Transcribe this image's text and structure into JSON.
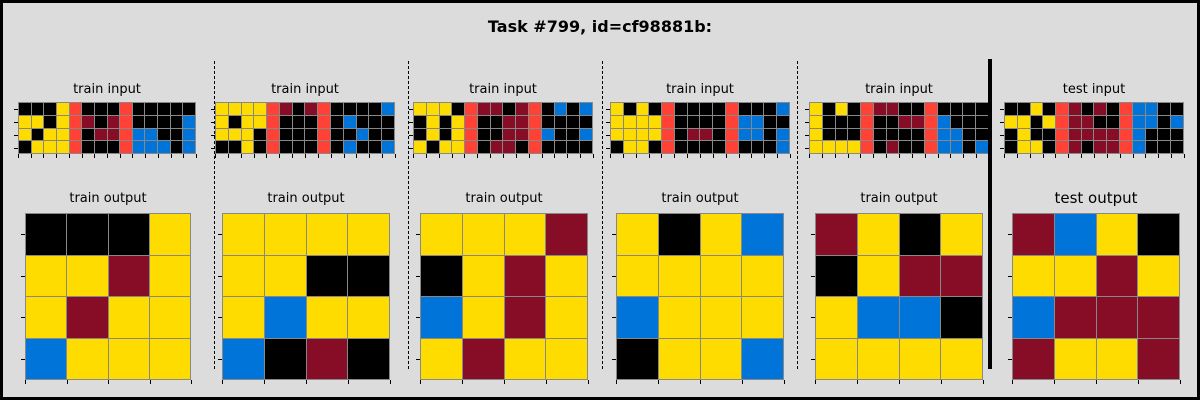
{
  "title": "Task #799, id=cf98881b:",
  "colors": {
    "0": "#000000",
    "1": "#0074d9",
    "2": "#ff4136",
    "4": "#ffdc00",
    "9": "#870c25"
  },
  "pairs": [
    {
      "input_label": "train input",
      "output_label": "train output",
      "input": [
        [
          0,
          0,
          0,
          4,
          2,
          0,
          0,
          0,
          2,
          0,
          0,
          0,
          0,
          0
        ],
        [
          4,
          4,
          0,
          4,
          2,
          9,
          0,
          9,
          2,
          0,
          0,
          0,
          0,
          1
        ],
        [
          4,
          0,
          4,
          4,
          2,
          0,
          9,
          9,
          2,
          1,
          1,
          0,
          0,
          1
        ],
        [
          0,
          4,
          4,
          4,
          2,
          0,
          0,
          0,
          2,
          1,
          1,
          1,
          0,
          1
        ]
      ],
      "output": [
        [
          0,
          0,
          0,
          4
        ],
        [
          4,
          4,
          9,
          4
        ],
        [
          4,
          9,
          4,
          4
        ],
        [
          1,
          4,
          4,
          4
        ]
      ]
    },
    {
      "input_label": "train input",
      "output_label": "train output",
      "input": [
        [
          4,
          4,
          4,
          4,
          2,
          9,
          0,
          9,
          2,
          0,
          0,
          0,
          0,
          1
        ],
        [
          4,
          0,
          4,
          4,
          2,
          0,
          0,
          0,
          2,
          0,
          1,
          0,
          0,
          0
        ],
        [
          4,
          4,
          4,
          0,
          2,
          0,
          0,
          0,
          2,
          0,
          0,
          1,
          0,
          0
        ],
        [
          0,
          0,
          4,
          0,
          2,
          0,
          0,
          0,
          2,
          0,
          1,
          0,
          0,
          1
        ]
      ],
      "output": [
        [
          4,
          4,
          4,
          4
        ],
        [
          4,
          4,
          0,
          0
        ],
        [
          4,
          1,
          4,
          4
        ],
        [
          1,
          0,
          9,
          0
        ]
      ]
    },
    {
      "input_label": "train input",
      "output_label": "train output",
      "input": [
        [
          4,
          4,
          4,
          0,
          2,
          9,
          9,
          0,
          9,
          2,
          0,
          1,
          0,
          1
        ],
        [
          0,
          4,
          0,
          4,
          2,
          0,
          0,
          9,
          9,
          2,
          0,
          0,
          0,
          0
        ],
        [
          0,
          4,
          0,
          4,
          2,
          0,
          0,
          9,
          9,
          2,
          1,
          0,
          0,
          1
        ],
        [
          4,
          0,
          4,
          4,
          2,
          0,
          9,
          9,
          0,
          2,
          0,
          0,
          0,
          0
        ]
      ],
      "output": [
        [
          4,
          4,
          4,
          9
        ],
        [
          0,
          4,
          9,
          4
        ],
        [
          1,
          4,
          9,
          4
        ],
        [
          4,
          9,
          4,
          4
        ]
      ]
    },
    {
      "input_label": "train input",
      "output_label": "train output",
      "input": [
        [
          4,
          0,
          4,
          0,
          2,
          0,
          0,
          0,
          0,
          2,
          0,
          0,
          0,
          1
        ],
        [
          4,
          4,
          4,
          4,
          2,
          0,
          0,
          0,
          0,
          2,
          1,
          1,
          0,
          0
        ],
        [
          4,
          4,
          4,
          4,
          2,
          0,
          9,
          9,
          0,
          2,
          1,
          1,
          0,
          1
        ],
        [
          0,
          4,
          4,
          0,
          2,
          0,
          0,
          0,
          0,
          2,
          0,
          0,
          0,
          1
        ]
      ],
      "output": [
        [
          4,
          0,
          4,
          1
        ],
        [
          4,
          4,
          4,
          4
        ],
        [
          1,
          4,
          4,
          4
        ],
        [
          0,
          4,
          4,
          1
        ]
      ]
    },
    {
      "input_label": "train input",
      "output_label": "train output",
      "input": [
        [
          4,
          0,
          4,
          0,
          2,
          9,
          9,
          0,
          0,
          2,
          0,
          0,
          0,
          0
        ],
        [
          4,
          0,
          0,
          0,
          2,
          0,
          0,
          9,
          9,
          2,
          1,
          0,
          0,
          0
        ],
        [
          4,
          0,
          0,
          0,
          2,
          0,
          0,
          0,
          0,
          2,
          1,
          1,
          0,
          0
        ],
        [
          4,
          4,
          4,
          4,
          2,
          0,
          9,
          0,
          0,
          2,
          1,
          1,
          0,
          1
        ]
      ],
      "output": [
        [
          9,
          4,
          0,
          4
        ],
        [
          0,
          4,
          9,
          9
        ],
        [
          4,
          1,
          1,
          0
        ],
        [
          4,
          4,
          4,
          4
        ]
      ]
    },
    {
      "input_label": "test input",
      "output_label": "test output",
      "input": [
        [
          0,
          0,
          4,
          0,
          2,
          9,
          0,
          9,
          0,
          2,
          1,
          1,
          0,
          0
        ],
        [
          4,
          4,
          0,
          4,
          2,
          9,
          9,
          0,
          0,
          2,
          1,
          1,
          0,
          1
        ],
        [
          0,
          4,
          0,
          0,
          2,
          9,
          9,
          9,
          9,
          2,
          1,
          0,
          0,
          0
        ],
        [
          0,
          4,
          4,
          0,
          2,
          9,
          0,
          9,
          9,
          2,
          1,
          0,
          0,
          0
        ]
      ],
      "output": [
        [
          9,
          1,
          4,
          0
        ],
        [
          4,
          4,
          9,
          4
        ],
        [
          1,
          9,
          9,
          9
        ],
        [
          9,
          4,
          4,
          9
        ]
      ]
    }
  ]
}
